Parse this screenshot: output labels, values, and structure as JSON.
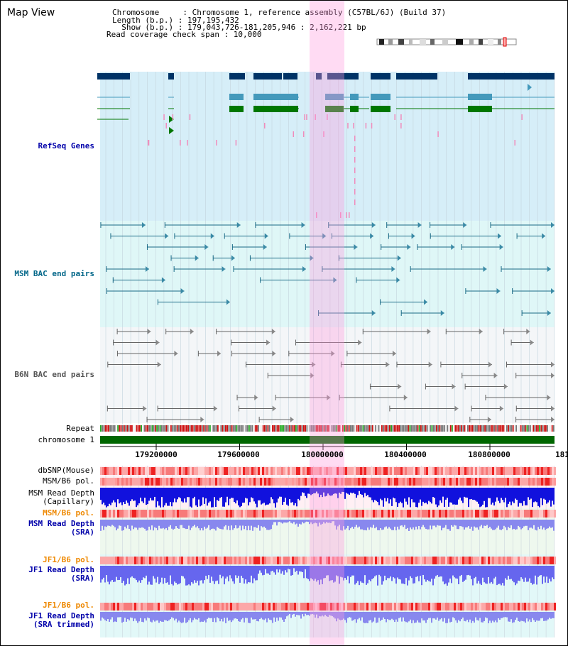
{
  "view_title": "Map View",
  "header": {
    "chromosome_line": "Chromosome     : Chromosome 1, reference assembly (C57BL/6J) (Build 37)",
    "length_line": "Length (b.p.) : 197,195,432",
    "show_line": "  Show (b.p.) : 179,043,726-181,205,946 : 2,162,221 bp",
    "coverage_line": "Read coverage check span : 10,000"
  },
  "tracks": {
    "refseq": "RefSeq Genes",
    "msm_bac": "MSM BAC end pairs",
    "b6n_bac": "B6N BAC end pairs",
    "repeat": "Repeat",
    "chromosome": "chromosome 1",
    "dbsnp": "dbSNP(Mouse)",
    "msm_b6_pol_1": "MSM/B6 pol.",
    "msm_depth_cap": "MSM Read Depth\n(Capillary)",
    "msm_b6_pol_2": "MSM/B6 pol.",
    "msm_depth_sra": "MSM Read Depth\n(SRA)",
    "jf1_b6_pol_1": "JF1/B6 pol.",
    "jf1_depth_sra": "JF1 Read Depth\n(SRA)",
    "jf1_b6_pol_2": "JF1/B6 pol.",
    "jf1_depth_trim": "JF1 Read Depth\n(SRA trimmed)"
  },
  "axis_ticks": [
    "179200000",
    "179600000",
    "180000000",
    "180400000",
    "180800000",
    "181"
  ],
  "colors": {
    "refseq_label": "#0000aa",
    "msm_label": "#006688",
    "b6n_label": "#555555",
    "pol_label": "#ee8800",
    "depth_label": "#0000aa",
    "gene_dark": "#003366",
    "gene_mid": "#4499bb",
    "gene_green": "#007700",
    "highlight": "#ff99dd"
  }
}
